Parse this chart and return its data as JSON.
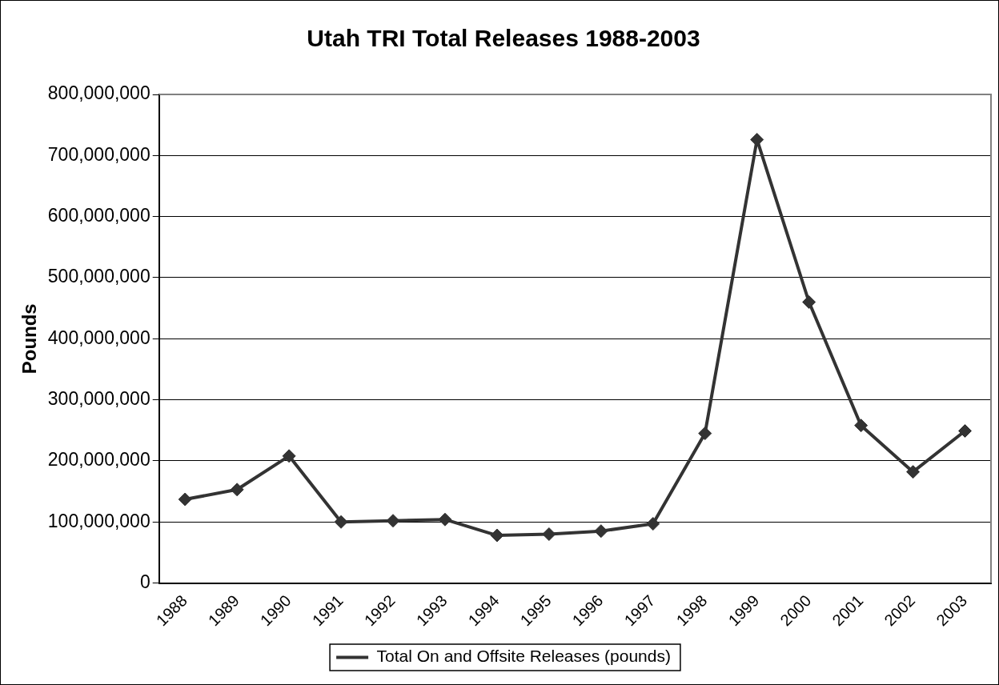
{
  "chart_data": {
    "type": "line",
    "title": "Utah TRI Total Releases 1988-2003",
    "ylabel": "Pounds",
    "categories": [
      "1988",
      "1989",
      "1990",
      "1991",
      "1992",
      "1993",
      "1994",
      "1995",
      "1996",
      "1997",
      "1998",
      "1999",
      "2000",
      "2001",
      "2002",
      "2003"
    ],
    "series": [
      {
        "name": "Total On and Offsite Releases (pounds)",
        "color": "#333333",
        "values": [
          137000000,
          153000000,
          208000000,
          100000000,
          102000000,
          104000000,
          78000000,
          80000000,
          85000000,
          97000000,
          245000000,
          726000000,
          460000000,
          258000000,
          182000000,
          249000000
        ]
      }
    ],
    "ylim": [
      0,
      800000000
    ],
    "yticks": [
      0,
      {
        "value": 100000000,
        "label": "100,000,000"
      },
      {
        "value": 200000000,
        "label": "200,000,000"
      },
      {
        "value": 300000000,
        "label": "300,000,000"
      },
      {
        "value": 400000000,
        "label": "400,000,000"
      },
      {
        "value": 500000000,
        "label": "500,000,000"
      },
      {
        "value": 600000000,
        "label": "600,000,000"
      },
      {
        "value": 700000000,
        "label": "700,000,000"
      },
      {
        "value": 800000000,
        "label": "800,000,000"
      }
    ],
    "grid": "y",
    "legend": "bottom",
    "marker": "diamond",
    "line_style": "solid"
  }
}
